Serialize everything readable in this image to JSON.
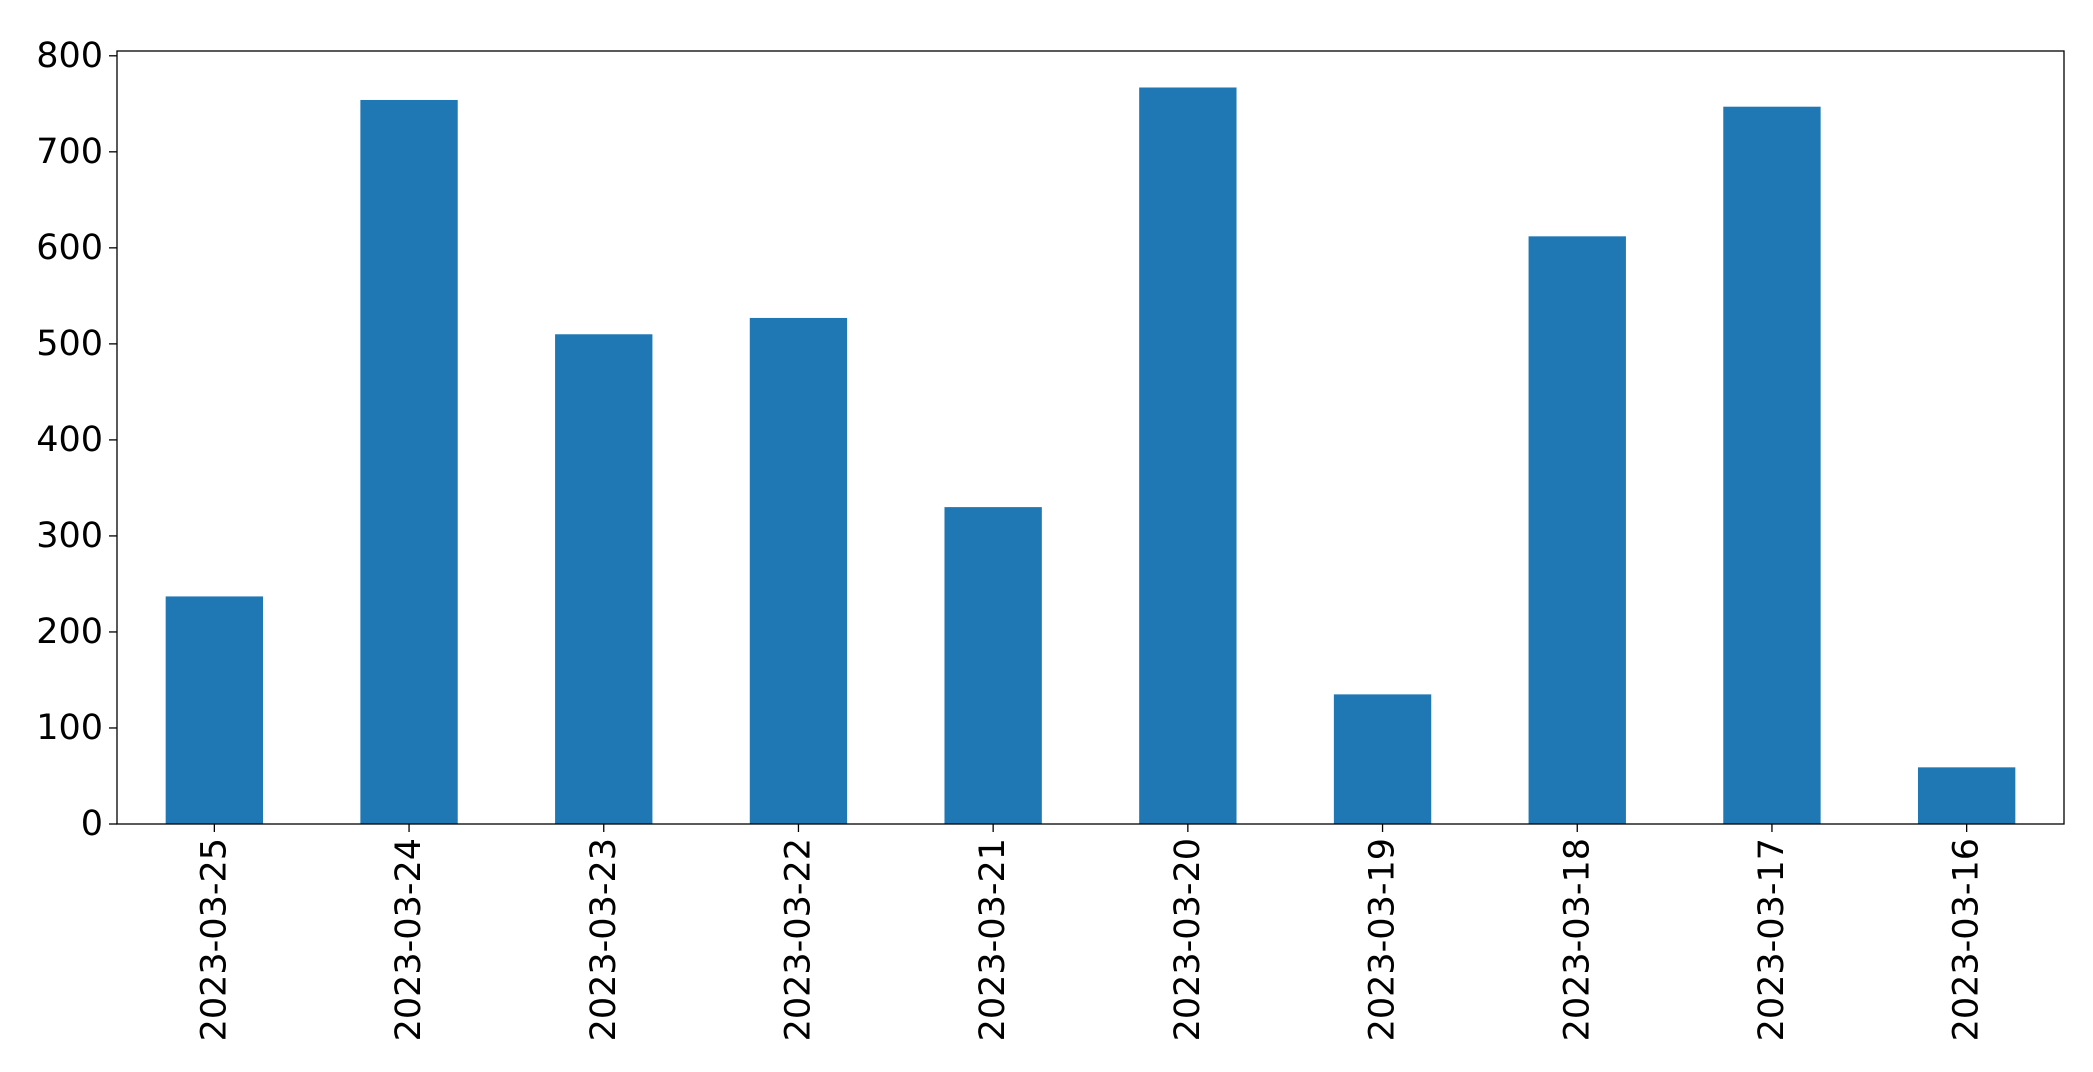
{
  "chart_data": {
    "type": "bar",
    "categories": [
      "2023-03-25",
      "2023-03-24",
      "2023-03-23",
      "2023-03-22",
      "2023-03-21",
      "2023-03-20",
      "2023-03-19",
      "2023-03-18",
      "2023-03-17",
      "2023-03-16"
    ],
    "values": [
      237,
      754,
      510,
      527,
      330,
      767,
      135,
      612,
      747,
      59
    ],
    "color": "#1f77b4",
    "ylim": [
      0,
      805
    ],
    "yticks": [
      0,
      100,
      200,
      300,
      400,
      500,
      600,
      700,
      800
    ],
    "grid": false
  }
}
